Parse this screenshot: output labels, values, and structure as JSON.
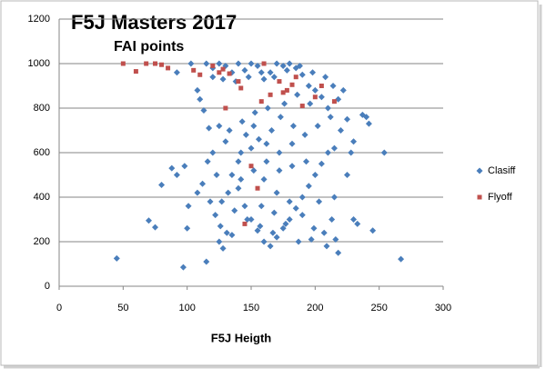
{
  "chart_data": {
    "type": "scatter",
    "title": "F5J Masters 2017",
    "subtitle": "FAI points",
    "x_label": "F5J Heigth",
    "xlim": [
      0,
      300
    ],
    "xticks": [
      0,
      50,
      100,
      150,
      200,
      250,
      300
    ],
    "ylim": [
      0,
      1200
    ],
    "yticks": [
      0,
      200,
      400,
      600,
      800,
      1000,
      1200
    ],
    "grid": true,
    "legend": "right",
    "series": [
      {
        "name": "Clasiff",
        "color": "#4a7ebb",
        "marker": "diamond",
        "x": [
          45,
          97,
          267,
          254,
          245,
          237,
          240,
          242,
          230,
          228,
          233,
          218,
          125,
          115,
          88,
          92,
          70,
          75,
          80,
          100,
          98,
          103,
          92,
          110,
          108,
          113,
          117,
          108,
          112,
          118,
          122,
          116,
          120,
          130,
          125,
          135,
          140,
          145,
          150,
          155,
          160,
          165,
          170,
          175,
          180,
          185,
          190,
          195,
          200,
          205,
          210,
          215,
          220,
          225,
          210,
          205,
          200,
          195,
          190,
          185,
          180,
          175,
          170,
          165,
          160,
          155,
          150,
          145,
          140,
          135,
          130,
          125,
          120,
          115,
          120,
          128,
          138,
          148,
          158,
          168,
          178,
          188,
          198,
          208,
          214,
          222,
          218,
          212,
          202,
          192,
          182,
          172,
          162,
          152,
          142,
          132,
          127,
          137,
          147,
          157,
          167,
          177,
          187,
          197,
          207,
          213,
          203,
          193,
          183,
          173,
          163,
          153,
          143,
          133,
          123,
          126,
          131,
          146,
          156,
          166,
          176,
          186,
          196,
          140,
          150,
          160,
          170,
          180,
          190,
          168,
          158,
          172,
          182,
          162,
          152,
          142,
          215,
          225,
          230,
          199,
          209,
          216,
          128,
          135,
          101
        ],
        "values": [
          125,
          85,
          122,
          600,
          250,
          770,
          760,
          730,
          650,
          600,
          280,
          150,
          200,
          110,
          530,
          500,
          295,
          265,
          455,
          260,
          540,
          1000,
          960,
          840,
          880,
          790,
          710,
          420,
          460,
          380,
          320,
          560,
          600,
          650,
          720,
          500,
          440,
          360,
          300,
          250,
          200,
          180,
          220,
          260,
          300,
          350,
          400,
          450,
          500,
          550,
          600,
          620,
          700,
          750,
          800,
          850,
          880,
          900,
          950,
          980,
          1000,
          990,
          1000,
          960,
          930,
          990,
          1000,
          970,
          1000,
          960,
          990,
          1000,
          940,
          1000,
          980,
          930,
          920,
          940,
          960,
          940,
          970,
          990,
          960,
          940,
          900,
          880,
          840,
          760,
          720,
          680,
          640,
          600,
          560,
          520,
          480,
          420,
          380,
          340,
          300,
          270,
          240,
          280,
          200,
          210,
          240,
          300,
          380,
          560,
          720,
          760,
          800,
          780,
          740,
          700,
          500,
          270,
          240,
          680,
          660,
          700,
          820,
          860,
          820,
          560,
          620,
          480,
          420,
          380,
          320,
          330,
          360,
          520,
          540,
          640,
          720,
          600,
          400,
          500,
          300,
          260,
          180,
          210,
          170,
          230,
          360
        ]
      },
      {
        "name": "Flyoff",
        "color": "#c0504d",
        "marker": "square",
        "x": [
          50,
          60,
          68,
          75,
          80,
          85,
          105,
          110,
          120,
          125,
          128,
          130,
          133,
          142,
          145,
          150,
          155,
          160,
          165,
          175,
          178,
          182,
          185,
          190,
          200,
          205,
          215,
          172,
          158,
          140
        ],
        "values": [
          1000,
          965,
          1000,
          1000,
          995,
          980,
          970,
          950,
          990,
          960,
          975,
          800,
          955,
          890,
          280,
          540,
          440,
          1000,
          860,
          870,
          880,
          905,
          940,
          810,
          850,
          900,
          830,
          920,
          830,
          920
        ]
      }
    ]
  }
}
